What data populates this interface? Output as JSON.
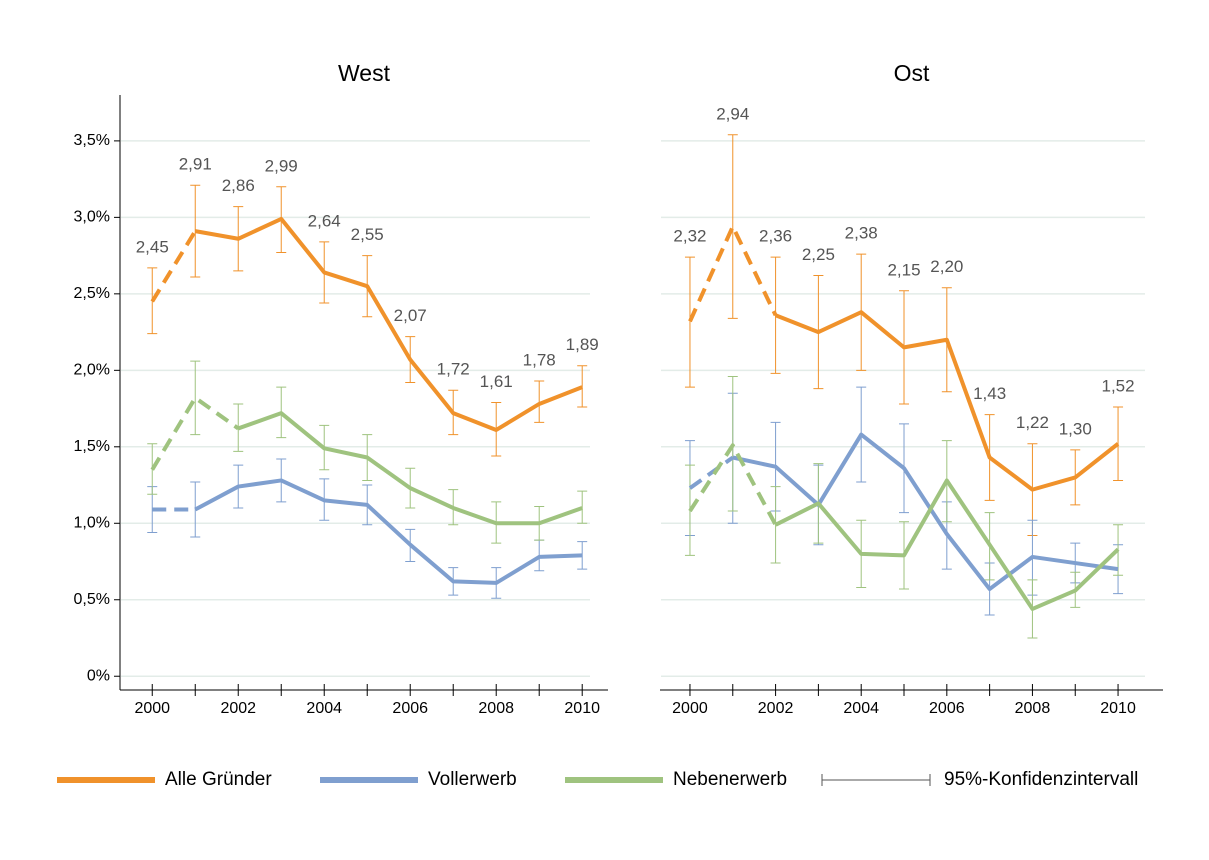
{
  "chart_data": [
    {
      "type": "line",
      "title": "West",
      "x": [
        2000,
        2001,
        2002,
        2003,
        2004,
        2005,
        2006,
        2007,
        2008,
        2009,
        2010
      ],
      "xlim": [
        1999.25,
        2010.6
      ],
      "xticks": [
        2000,
        2002,
        2004,
        2006,
        2008,
        2010
      ],
      "minor_xticks": [
        2001,
        2003,
        2005,
        2007,
        2009
      ],
      "ylim": [
        -0.09,
        3.8
      ],
      "yticks": [
        {
          "value": 0,
          "label": "0%"
        },
        {
          "value": 0.5,
          "label": "0,5%"
        },
        {
          "value": 1,
          "label": "1,0%"
        },
        {
          "value": 1.5,
          "label": "1,5%"
        },
        {
          "value": 2,
          "label": "2,0%"
        },
        {
          "value": 2.5,
          "label": "2,5%"
        },
        {
          "value": 3,
          "label": "3,0%"
        },
        {
          "value": 3.5,
          "label": "3,5%"
        }
      ],
      "show_ytick_labels": true,
      "grid": true,
      "series": [
        {
          "name": "Alle Gründer",
          "color": "#f0922b",
          "dashed_to": 1,
          "values": [
            2.45,
            2.91,
            2.86,
            2.99,
            2.64,
            2.55,
            2.07,
            1.72,
            1.61,
            1.78,
            1.89
          ],
          "value_labels": [
            "2,45",
            "2,91",
            "2,86",
            "2,99",
            "2,64",
            "2,55",
            "2,07",
            "1,72",
            "1,61",
            "1,78",
            "1,89"
          ],
          "ci_low": [
            2.24,
            2.61,
            2.65,
            2.77,
            2.44,
            2.35,
            1.92,
            1.58,
            1.44,
            1.66,
            1.76
          ],
          "ci_high": [
            2.67,
            3.21,
            3.07,
            3.2,
            2.84,
            2.75,
            2.22,
            1.87,
            1.79,
            1.93,
            2.03
          ]
        },
        {
          "name": "Vollerwerb",
          "color": "#7f9fcf",
          "dashed_to": 1,
          "values": [
            1.09,
            1.09,
            1.24,
            1.28,
            1.15,
            1.12,
            0.86,
            0.62,
            0.61,
            0.78,
            0.79
          ],
          "ci_low": [
            0.94,
            0.91,
            1.1,
            1.14,
            1.02,
            0.99,
            0.75,
            0.53,
            0.51,
            0.69,
            0.7
          ],
          "ci_high": [
            1.24,
            1.27,
            1.38,
            1.42,
            1.29,
            1.25,
            0.96,
            0.71,
            0.71,
            0.89,
            0.88
          ]
        },
        {
          "name": "Nebenerwerb",
          "color": "#9fc37f",
          "dashed_to": 2,
          "values": [
            1.35,
            1.82,
            1.62,
            1.72,
            1.49,
            1.43,
            1.23,
            1.1,
            1.0,
            1.0,
            1.1
          ],
          "ci_low": [
            1.19,
            1.58,
            1.47,
            1.56,
            1.35,
            1.28,
            1.1,
            0.99,
            0.87,
            0.89,
            1.0
          ],
          "ci_high": [
            1.52,
            2.06,
            1.78,
            1.89,
            1.64,
            1.58,
            1.36,
            1.22,
            1.14,
            1.11,
            1.21
          ]
        }
      ]
    },
    {
      "type": "line",
      "title": "Ost",
      "x": [
        2000,
        2001,
        2002,
        2003,
        2004,
        2005,
        2006,
        2007,
        2008,
        2009,
        2010
      ],
      "xlim": [
        1999.3,
        2011.05
      ],
      "xticks": [
        2000,
        2002,
        2004,
        2006,
        2008,
        2010
      ],
      "minor_xticks": [
        2001,
        2003,
        2005,
        2007,
        2009
      ],
      "ylim": [
        -0.09,
        3.8
      ],
      "yticks": [
        0,
        0.5,
        1,
        1.5,
        2,
        2.5,
        3,
        3.5
      ],
      "show_ytick_labels": false,
      "grid": true,
      "series": [
        {
          "name": "Alle Gründer",
          "color": "#f0922b",
          "dashed_to": 2,
          "values": [
            2.32,
            2.94,
            2.36,
            2.25,
            2.38,
            2.15,
            2.2,
            1.43,
            1.22,
            1.3,
            1.52
          ],
          "value_labels": [
            "2,32",
            "2,94",
            "2,36",
            "2,25",
            "2,38",
            "2,15",
            "2,20",
            "1,43",
            "1,22",
            "1,30",
            "1,52"
          ],
          "ci_low": [
            1.89,
            2.34,
            1.98,
            1.88,
            2.0,
            1.78,
            1.86,
            1.15,
            0.92,
            1.12,
            1.28
          ],
          "ci_high": [
            2.74,
            3.54,
            2.74,
            2.62,
            2.76,
            2.52,
            2.54,
            1.71,
            1.52,
            1.48,
            1.76
          ]
        },
        {
          "name": "Vollerwerb",
          "color": "#7f9fcf",
          "dashed_to": 1,
          "values": [
            1.23,
            1.43,
            1.37,
            1.12,
            1.58,
            1.36,
            0.93,
            0.57,
            0.78,
            0.74,
            0.7
          ],
          "ci_low": [
            0.92,
            1.0,
            1.08,
            0.86,
            1.27,
            1.07,
            0.7,
            0.4,
            0.53,
            0.61,
            0.54
          ],
          "ci_high": [
            1.54,
            1.85,
            1.66,
            1.38,
            1.89,
            1.65,
            1.14,
            0.74,
            1.02,
            0.87,
            0.86
          ]
        },
        {
          "name": "Nebenerwerb",
          "color": "#9fc37f",
          "dashed_to": 2,
          "values": [
            1.08,
            1.51,
            0.99,
            1.13,
            0.8,
            0.79,
            1.28,
            0.86,
            0.44,
            0.56,
            0.83
          ],
          "ci_low": [
            0.79,
            1.08,
            0.74,
            0.87,
            0.58,
            0.57,
            1.01,
            0.63,
            0.25,
            0.45,
            0.66
          ],
          "ci_high": [
            1.38,
            1.96,
            1.24,
            1.39,
            1.02,
            1.01,
            1.54,
            1.07,
            0.63,
            0.68,
            0.99
          ]
        }
      ]
    }
  ],
  "legend_ci_label": "95%-Konfidenzintervall"
}
